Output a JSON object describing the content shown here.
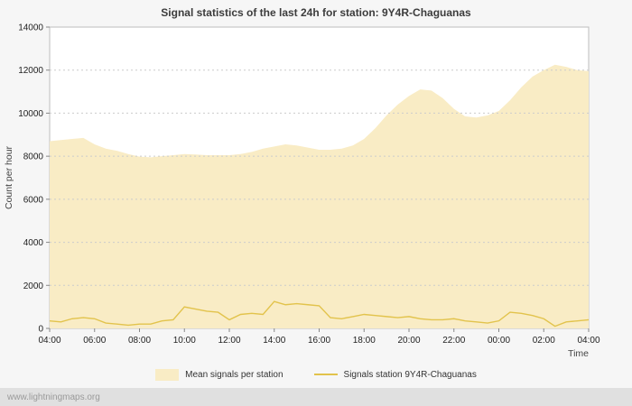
{
  "chart_data": {
    "type": "area",
    "title": "Signal statistics of the last 24h for station: 9Y4R-Chaguanas",
    "xlabel": "Time",
    "ylabel": "Count per hour",
    "ylim": [
      0,
      14000
    ],
    "yticks": [
      0,
      2000,
      4000,
      6000,
      8000,
      10000,
      12000,
      14000
    ],
    "xtick_labels": [
      "04:00",
      "06:00",
      "08:00",
      "10:00",
      "12:00",
      "14:00",
      "16:00",
      "18:00",
      "20:00",
      "22:00",
      "00:00",
      "02:00",
      "04:00"
    ],
    "sample_interval_hours": 0.5,
    "grid": "horizontal-dotted",
    "legend_position": "bottom",
    "colors": {
      "area_fill": "#f9ecc5",
      "station_line": "#e2c34c",
      "gridline": "#cccccc",
      "plot_border": "#bdbdbd"
    },
    "series": [
      {
        "name": "Mean signals per station",
        "type": "area",
        "color": "#f9ecc5",
        "values": [
          8700,
          8750,
          8800,
          8850,
          8550,
          8350,
          8250,
          8100,
          7980,
          7950,
          8000,
          8050,
          8100,
          8080,
          8050,
          8050,
          8050,
          8100,
          8200,
          8350,
          8450,
          8550,
          8500,
          8400,
          8300,
          8300,
          8350,
          8500,
          8800,
          9300,
          9900,
          10400,
          10800,
          11100,
          11050,
          10700,
          10200,
          9850,
          9800,
          9900,
          10100,
          10600,
          11200,
          11700,
          12000,
          12250,
          12150,
          12000,
          11950
        ]
      },
      {
        "name": "Signals station 9Y4R-Chaguanas",
        "type": "line",
        "color": "#e2c34c",
        "values": [
          350,
          300,
          450,
          500,
          450,
          250,
          200,
          150,
          200,
          200,
          350,
          400,
          1000,
          900,
          800,
          750,
          400,
          650,
          700,
          650,
          1250,
          1100,
          1150,
          1100,
          1050,
          500,
          450,
          550,
          650,
          600,
          550,
          500,
          550,
          450,
          400,
          400,
          450,
          350,
          300,
          250,
          350,
          750,
          700,
          600,
          450,
          100,
          300,
          350,
          400
        ]
      }
    ]
  },
  "footer": {
    "watermark": "www.lightningmaps.org"
  }
}
